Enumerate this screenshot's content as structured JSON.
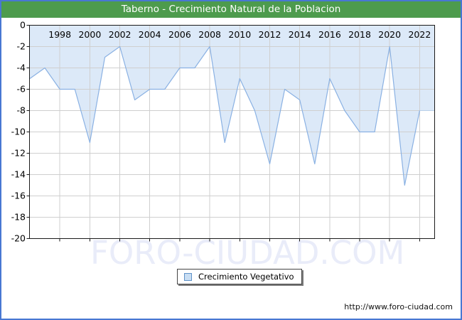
{
  "window": {
    "title": "Taberno - Crecimiento Natural de la Poblacion"
  },
  "legend": {
    "label": "Crecimiento Vegetativo"
  },
  "watermark": "FORO-CIUDAD.COM",
  "footer": {
    "url": "http://www.foro-ciudad.com"
  },
  "colors": {
    "frame_border": "#4877d2",
    "titlebar_bg": "#4d9b4d",
    "titlebar_text": "#ffffff",
    "plot_border": "#1a1a1a",
    "grid": "#cfcfcf",
    "line": "#8ab1e3",
    "area_fill": "#dce9f8",
    "area_edge": "#b9cfe9",
    "tick_text": "#000000",
    "watermark_text": "#e9ecf9",
    "legend_swatch_fill": "#c9def3",
    "legend_swatch_border": "#5f92c8"
  },
  "chart_data": {
    "type": "area",
    "title": "Taberno - Crecimiento Natural de la Poblacion",
    "series_name": "Crecimiento Vegetativo",
    "x": [
      1996,
      1997,
      1998,
      1999,
      2000,
      2001,
      2002,
      2003,
      2004,
      2005,
      2006,
      2007,
      2008,
      2009,
      2010,
      2011,
      2012,
      2013,
      2014,
      2015,
      2016,
      2017,
      2018,
      2019,
      2020,
      2021,
      2022
    ],
    "values": [
      -5,
      -4,
      -6,
      -6,
      -11,
      -3,
      -2,
      -7,
      -6,
      -6,
      -4,
      -4,
      -2,
      -11,
      -5,
      -8,
      -13,
      -6,
      -7,
      -13,
      -5,
      -8,
      -10,
      -10,
      -2,
      -15,
      -8
    ],
    "xlabel": "",
    "ylabel": "",
    "xlim": [
      1996,
      2023
    ],
    "ylim": [
      -20,
      0
    ],
    "x_tick_labels": [
      "1998",
      "2000",
      "2002",
      "2004",
      "2006",
      "2008",
      "2010",
      "2012",
      "2014",
      "2016",
      "2018",
      "2020",
      "2022"
    ],
    "x_tick_years": [
      1998,
      2000,
      2002,
      2004,
      2006,
      2008,
      2010,
      2012,
      2014,
      2016,
      2018,
      2020,
      2022
    ],
    "y_tick_labels": [
      "0",
      "-2",
      "-4",
      "-6",
      "-8",
      "-10",
      "-12",
      "-14",
      "-16",
      "-18",
      "-20"
    ],
    "y_tick_values": [
      0,
      -2,
      -4,
      -6,
      -8,
      -10,
      -12,
      -14,
      -16,
      -18,
      -20
    ],
    "grid": true,
    "fill_to": "top",
    "legend_position": "bottom-center"
  }
}
